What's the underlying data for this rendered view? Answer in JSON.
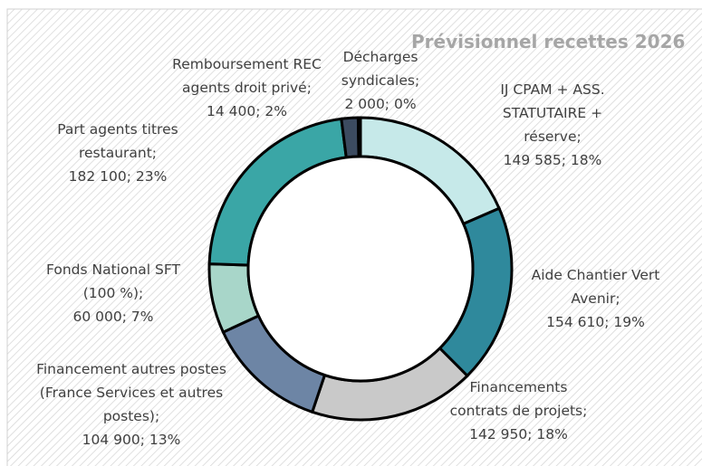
{
  "chart_data": {
    "type": "donut",
    "title": "Prévisionnel recettes 2026",
    "categories": [
      "IJ CPAM + ASS. STATUTAIRE + réserve;",
      "Aide Chantier Vert Avenir;",
      "Financements contrats de projets;",
      "Financement autres postes (France Services et autres postes);",
      "Fonds National SFT (100 %);",
      "Part agents titres restaurant;",
      "Remboursement REC agents droit privé;",
      "Décharges syndicales;"
    ],
    "values": [
      149585,
      154610,
      142950,
      104900,
      60000,
      182100,
      14400,
      2000
    ],
    "value_labels": [
      "149 585; 18%",
      "154 610; 19%",
      "142 950; 18%",
      "104 900; 13%",
      "60 000; 7%",
      "182 100; 23%",
      "14 400; 2%",
      "2 000; 0%"
    ],
    "colors": [
      "#c6e9e9",
      "#2f899c",
      "#c9c9c9",
      "#6d85a5",
      "#a8d6c9",
      "#3aa6a6",
      "#3c4b60",
      "#111111"
    ]
  }
}
